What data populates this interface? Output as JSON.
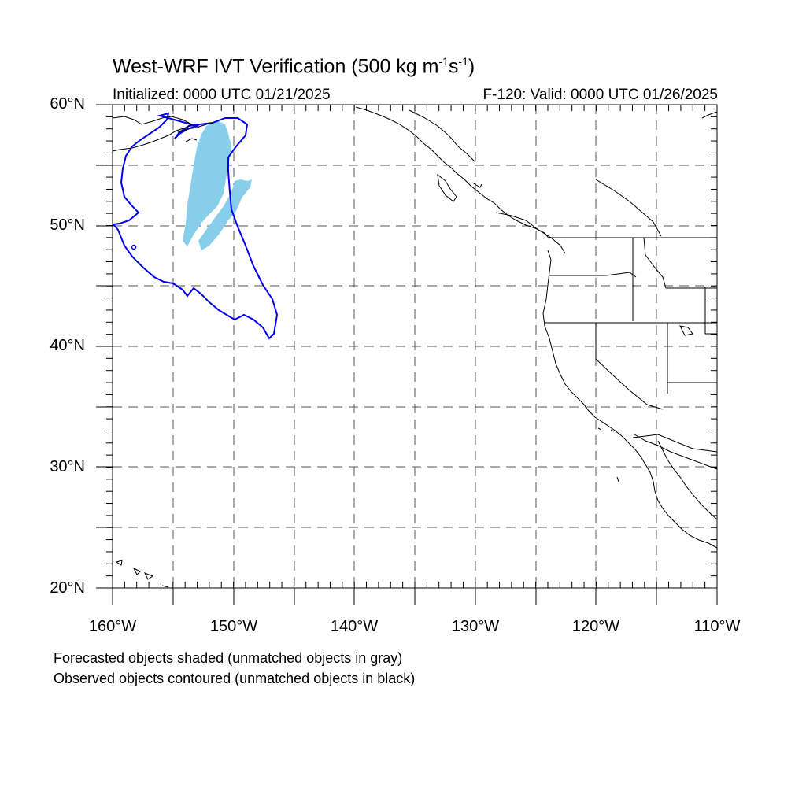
{
  "header": {
    "title_main": "West-WRF IVT Verification (500 kg m",
    "title_sup1": "-1",
    "title_s": "s",
    "title_sup2": "-1",
    "title_end": ")",
    "initialized": "Initialized: 0000 UTC 01/21/2025",
    "valid": "F-120: Valid: 0000 UTC 01/26/2025"
  },
  "footer": {
    "note_forecast": "Forecasted objects shaded (unmatched objects in gray)",
    "note_observed": "Observed objects contoured (unmatched objects in black)"
  },
  "map": {
    "lat_labels": [
      "60°N",
      "50°N",
      "40°N",
      "30°N",
      "20°N"
    ],
    "lon_labels": [
      "160°W",
      "150°W",
      "140°W",
      "130°W",
      "120°W",
      "110°W"
    ],
    "colors": {
      "forecast_fill": "#87ceeb",
      "observed_contour": "#0000ee",
      "coastline": "#000000"
    }
  }
}
